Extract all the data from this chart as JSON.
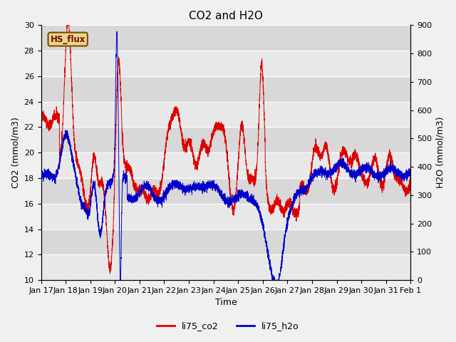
{
  "title": "CO2 and H2O",
  "xlabel": "Time",
  "ylabel_left": "CO2 (mmol/m3)",
  "ylabel_right": "H2O (mmol/m3)",
  "ylim_left": [
    10,
    30
  ],
  "ylim_right": [
    0,
    900
  ],
  "yticks_left": [
    10,
    12,
    14,
    16,
    18,
    20,
    22,
    24,
    26,
    28,
    30
  ],
  "yticks_right": [
    0,
    100,
    200,
    300,
    400,
    500,
    600,
    700,
    800,
    900
  ],
  "band_colors": [
    "#e8e8e8",
    "#d8d8d8"
  ],
  "grid_color": "#ffffff",
  "color_co2": "#dd0000",
  "color_h2o": "#0000cc",
  "legend_co2": "li75_co2",
  "legend_h2o": "li75_h2o",
  "hs_flux_label": "HS_flux",
  "hs_flux_bg": "#dddd88",
  "hs_flux_text": "#880000",
  "hs_flux_border": "#884400",
  "title_fontsize": 11,
  "axis_fontsize": 9,
  "tick_fontsize": 8,
  "legend_fontsize": 9,
  "figsize": [
    6.4,
    4.8
  ],
  "dpi": 100
}
